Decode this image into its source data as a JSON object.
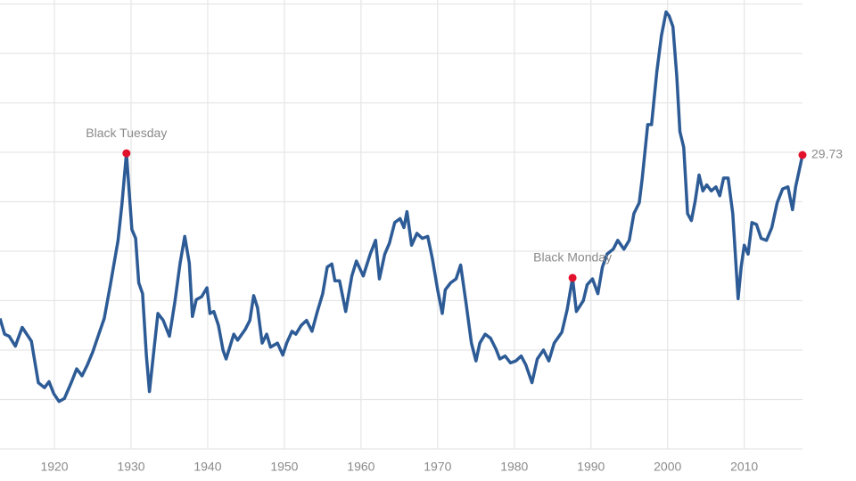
{
  "chart_data": {
    "type": "line",
    "x": [
      1912.9,
      1913.5,
      1914.1,
      1914.9,
      1915.8,
      1917.0,
      1917.9,
      1918.7,
      1919.3,
      1919.9,
      1920.6,
      1921.3,
      1922.2,
      1922.9,
      1923.6,
      1924.3,
      1925.0,
      1925.7,
      1926.5,
      1927.3,
      1928.3,
      1928.8,
      1929.4,
      1930.1,
      1930.6,
      1931.0,
      1931.5,
      1932.0,
      1932.4,
      1932.9,
      1933.5,
      1934.2,
      1935.0,
      1935.7,
      1936.4,
      1937.0,
      1937.6,
      1938.0,
      1938.5,
      1939.2,
      1939.9,
      1940.3,
      1940.8,
      1941.4,
      1942.0,
      1942.4,
      1943.4,
      1943.9,
      1944.9,
      1945.5,
      1946.0,
      1946.5,
      1947.1,
      1947.7,
      1948.2,
      1949.1,
      1949.8,
      1950.3,
      1951.0,
      1951.5,
      1952.2,
      1952.9,
      1953.6,
      1954.3,
      1955.0,
      1955.6,
      1956.2,
      1956.6,
      1957.2,
      1958.0,
      1958.8,
      1959.4,
      1960.3,
      1961.2,
      1961.9,
      1962.4,
      1963.1,
      1963.7,
      1964.4,
      1965.1,
      1965.6,
      1966.0,
      1966.6,
      1967.3,
      1968.0,
      1968.7,
      1969.3,
      1970.0,
      1970.6,
      1971.0,
      1971.7,
      1972.4,
      1973.0,
      1973.7,
      1974.4,
      1975.0,
      1975.5,
      1976.2,
      1976.9,
      1977.6,
      1978.1,
      1978.8,
      1979.5,
      1980.2,
      1980.9,
      1981.5,
      1982.3,
      1983.0,
      1983.8,
      1984.5,
      1985.2,
      1986.2,
      1986.9,
      1987.6,
      1988.1,
      1989.0,
      1989.5,
      1990.2,
      1990.9,
      1991.5,
      1992.1,
      1992.9,
      1993.5,
      1994.3,
      1995.0,
      1995.6,
      1996.3,
      1996.7,
      1997.4,
      1997.9,
      1998.6,
      1999.2,
      1999.8,
      2000.2,
      2000.7,
      2001.2,
      2001.6,
      2002.1,
      2002.6,
      2003.1,
      2003.6,
      2004.1,
      2004.6,
      2005.1,
      2005.7,
      2006.3,
      2006.8,
      2007.3,
      2007.9,
      2008.5,
      2009.2,
      2009.6,
      2010.0,
      2010.5,
      2011.0,
      2011.6,
      2012.2,
      2012.9,
      2013.6,
      2014.3,
      2015.0,
      2015.7,
      2016.3,
      2016.7,
      2017.2,
      2017.6
    ],
    "series": [
      {
        "color": "#2d5b96",
        "values": [
          13.2,
          11.6,
          11.4,
          10.4,
          12.3,
          10.9,
          6.7,
          6.2,
          6.8,
          5.6,
          4.8,
          5.1,
          6.7,
          8.1,
          7.4,
          8.5,
          9.8,
          11.4,
          13.2,
          16.6,
          21.1,
          24.7,
          29.9,
          22.2,
          21.3,
          16.8,
          15.7,
          9.4,
          5.8,
          9.4,
          13.7,
          13.0,
          11.4,
          14.8,
          18.8,
          21.5,
          18.8,
          13.4,
          15.1,
          15.4,
          16.3,
          13.7,
          13.9,
          12.5,
          10.0,
          9.1,
          11.6,
          11.0,
          12.1,
          13.0,
          15.5,
          14.3,
          10.7,
          11.6,
          10.3,
          10.7,
          9.5,
          10.7,
          11.9,
          11.6,
          12.5,
          13.0,
          11.9,
          13.9,
          15.7,
          18.4,
          18.7,
          17.0,
          17.0,
          13.9,
          17.5,
          19.0,
          17.5,
          19.7,
          21.1,
          17.2,
          19.7,
          20.8,
          22.9,
          23.3,
          22.4,
          24.0,
          20.6,
          21.8,
          21.3,
          21.5,
          19.3,
          16.1,
          13.7,
          16.1,
          16.8,
          17.2,
          18.6,
          14.8,
          10.7,
          8.9,
          10.7,
          11.6,
          11.2,
          10.1,
          9.1,
          9.4,
          8.7,
          8.9,
          9.4,
          8.5,
          6.7,
          9.1,
          10.0,
          8.9,
          10.7,
          11.8,
          14.1,
          17.3,
          13.9,
          15.0,
          16.6,
          17.2,
          15.7,
          18.4,
          19.7,
          20.2,
          21.1,
          20.2,
          21.1,
          23.8,
          24.9,
          27.4,
          32.8,
          32.8,
          38.2,
          41.8,
          44.2,
          43.8,
          42.7,
          37.7,
          32.1,
          30.5,
          23.8,
          23.1,
          25.1,
          27.7,
          26.1,
          26.7,
          26.1,
          26.5,
          25.6,
          27.4,
          27.4,
          23.8,
          15.2,
          18.4,
          20.6,
          19.7,
          22.9,
          22.7,
          21.3,
          21.1,
          22.4,
          24.9,
          26.3,
          26.5,
          24.2,
          26.5,
          28.3,
          29.73
        ]
      }
    ],
    "annotations": [
      {
        "text": "Black Tuesday",
        "x": 1929.4
      },
      {
        "text": "Black Monday",
        "x": 1987.6
      }
    ],
    "marker_color": "#e3122c",
    "xlim": [
      1912.9,
      2017.6
    ],
    "ylim": [
      0,
      45
    ],
    "xticks": [
      1920,
      1930,
      1940,
      1950,
      1960,
      1970,
      1980,
      1990,
      2000,
      2010
    ],
    "ygrid": [
      0,
      5,
      10,
      15,
      20,
      25,
      30,
      35,
      40,
      45
    ]
  }
}
